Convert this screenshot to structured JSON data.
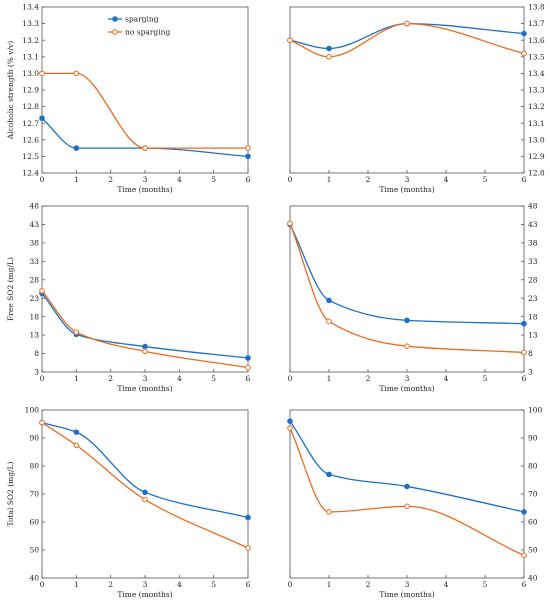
{
  "colors": {
    "sparging": "#1f6fc5",
    "no_sparging": "#ec6b1f"
  },
  "chart_data": [
    {
      "type": "line",
      "xlabel": "Time (months)",
      "ylabel": "Alcoholic strength (% v/v)",
      "x": [
        0,
        1,
        3,
        6
      ],
      "xlim": [
        0,
        6
      ],
      "xticks": [
        "0",
        "1",
        "2",
        "3",
        "4",
        "5",
        "6"
      ],
      "ylim": [
        12.4,
        13.4
      ],
      "yticks": [
        "12.4",
        "12.5",
        "12.6",
        "12.7",
        "12.8",
        "12.9",
        "13.0",
        "13.1",
        "13.2",
        "13.3",
        "13.4"
      ],
      "ytick_side": "left",
      "grid": false,
      "legend": {
        "placement": "top-center",
        "labels": [
          "sparging",
          "no sparging"
        ]
      },
      "series": [
        {
          "name": "sparging",
          "marker": "filled",
          "values": [
            12.73,
            12.55,
            12.55,
            12.5
          ]
        },
        {
          "name": "no sparging",
          "marker": "open",
          "values": [
            13.0,
            13.0,
            12.55,
            12.55
          ]
        }
      ]
    },
    {
      "type": "line",
      "xlabel": "Time (months)",
      "ylabel": "",
      "x": [
        0,
        1,
        3,
        6
      ],
      "xlim": [
        0,
        6
      ],
      "xticks": [
        "0",
        "1",
        "2",
        "3",
        "4",
        "5",
        "6"
      ],
      "ylim": [
        12.8,
        13.8
      ],
      "yticks": [
        "12.8",
        "12.9",
        "13.0",
        "13.1",
        "13.2",
        "13.3",
        "13.4",
        "13.5",
        "13.6",
        "13.7",
        "13.8"
      ],
      "ytick_side": "right",
      "grid": false,
      "series": [
        {
          "marker": "filled",
          "values": [
            13.6,
            13.55,
            13.7,
            13.64
          ]
        },
        {
          "marker": "open",
          "values": [
            13.6,
            13.5,
            13.7,
            13.52
          ]
        }
      ]
    },
    {
      "type": "line",
      "xlabel": "Time (months)",
      "ylabel": "Free SO2 (mg/L)",
      "x": [
        0,
        1,
        3,
        6
      ],
      "xlim": [
        0,
        6
      ],
      "xticks": [
        "0",
        "1",
        "2",
        "3",
        "4",
        "5",
        "6"
      ],
      "ylim": [
        3,
        48
      ],
      "yticks": [
        "3",
        "8",
        "13",
        "18",
        "23",
        "28",
        "33",
        "38",
        "43",
        "48"
      ],
      "ytick_side": "left",
      "grid": false,
      "series": [
        {
          "marker": "filled",
          "values": [
            24.3,
            13.2,
            9.9,
            6.8
          ]
        },
        {
          "marker": "open",
          "values": [
            25.0,
            13.8,
            8.6,
            4.2
          ]
        }
      ]
    },
    {
      "type": "line",
      "xlabel": "Time (months)",
      "ylabel": "",
      "x": [
        0,
        1,
        3,
        6
      ],
      "xlim": [
        0,
        6
      ],
      "xticks": [
        "0",
        "1",
        "2",
        "3",
        "4",
        "5",
        "6"
      ],
      "ylim": [
        3,
        48
      ],
      "yticks": [
        "3",
        "8",
        "13",
        "18",
        "23",
        "28",
        "33",
        "38",
        "43",
        "48"
      ],
      "ytick_side": "right",
      "grid": false,
      "series": [
        {
          "marker": "filled",
          "values": [
            43.0,
            22.4,
            17.0,
            16.1
          ]
        },
        {
          "marker": "open",
          "values": [
            43.3,
            16.7,
            10.0,
            8.3
          ]
        }
      ]
    },
    {
      "type": "line",
      "xlabel": "Time (months)",
      "ylabel": "Total SO2 (mg/L)",
      "x": [
        0,
        1,
        3,
        6
      ],
      "xlim": [
        0,
        6
      ],
      "xticks": [
        "0",
        "1",
        "2",
        "3",
        "4",
        "5",
        "6"
      ],
      "ylim": [
        40,
        100
      ],
      "yticks": [
        "40",
        "50",
        "60",
        "70",
        "80",
        "90",
        "100"
      ],
      "ytick_side": "left",
      "grid": false,
      "series": [
        {
          "marker": "filled",
          "values": [
            95.5,
            92.1,
            70.6,
            61.6
          ]
        },
        {
          "marker": "open",
          "values": [
            95.5,
            87.4,
            68.0,
            50.7
          ]
        }
      ]
    },
    {
      "type": "line",
      "xlabel": "Time (months)",
      "ylabel": "",
      "x": [
        0,
        1,
        3,
        6
      ],
      "xlim": [
        0,
        6
      ],
      "xticks": [
        "0",
        "1",
        "2",
        "3",
        "4",
        "5",
        "6"
      ],
      "ylim": [
        40,
        100
      ],
      "yticks": [
        "40",
        "50",
        "60",
        "70",
        "80",
        "90",
        "100"
      ],
      "ytick_side": "right",
      "grid": false,
      "series": [
        {
          "marker": "filled",
          "values": [
            96.0,
            77.0,
            72.7,
            63.6
          ]
        },
        {
          "marker": "open",
          "values": [
            93.5,
            63.6,
            65.6,
            48.1
          ]
        }
      ]
    }
  ]
}
